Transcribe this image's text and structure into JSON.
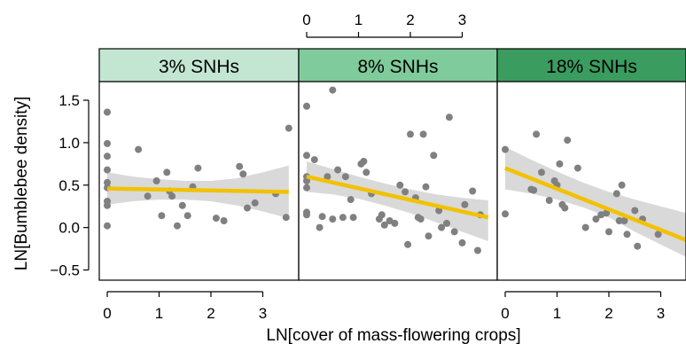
{
  "chart_data": {
    "type": "scatter",
    "xlabel": "LN[cover of mass-flowering crops]",
    "ylabel": "LN[Bumblebee density]",
    "xlim": [
      -0.1,
      3.55
    ],
    "ylim": [
      -0.62,
      1.72
    ],
    "x_ticks": [
      0,
      1,
      2,
      3
    ],
    "y_ticks": [
      -0.5,
      0.0,
      0.5,
      1.0,
      1.5
    ],
    "y_tick_labels": [
      "−0.5",
      "0.0",
      "0.5",
      "1.0",
      "1.5"
    ],
    "point_color": "#808080",
    "line_color": "#f2c100",
    "band_color": "#d9d9d9",
    "panels": [
      {
        "label": "3% SNHs",
        "strip_color": "#c3e6d2",
        "points": [
          [
            0,
            1.36
          ],
          [
            0,
            0.99
          ],
          [
            0,
            0.84
          ],
          [
            0,
            0.68
          ],
          [
            0,
            0.53
          ],
          [
            0,
            0.47
          ],
          [
            0,
            0.31
          ],
          [
            0,
            0.26
          ],
          [
            0,
            0.02
          ],
          [
            0.6,
            0.92
          ],
          [
            0.78,
            0.37
          ],
          [
            0.95,
            0.55
          ],
          [
            1.05,
            0.14
          ],
          [
            1.15,
            0.65
          ],
          [
            1.2,
            0.43
          ],
          [
            1.25,
            0.37
          ],
          [
            1.35,
            0.02
          ],
          [
            1.45,
            0.26
          ],
          [
            1.55,
            0.14
          ],
          [
            1.65,
            0.48
          ],
          [
            1.75,
            0.7
          ],
          [
            2.1,
            0.11
          ],
          [
            2.25,
            0.08
          ],
          [
            2.55,
            0.72
          ],
          [
            2.62,
            0.63
          ],
          [
            2.7,
            0.23
          ],
          [
            2.85,
            0.29
          ],
          [
            3.25,
            0.4
          ],
          [
            3.45,
            0.12
          ],
          [
            3.5,
            1.17
          ]
        ],
        "fit": {
          "x": [
            0,
            3.5
          ],
          "y": [
            0.46,
            0.42
          ]
        },
        "band": {
          "x": [
            0,
            0.5,
            1,
            1.5,
            2,
            2.5,
            3,
            3.5
          ],
          "lower": [
            0.27,
            0.31,
            0.33,
            0.33,
            0.31,
            0.26,
            0.19,
            0.11
          ],
          "upper": [
            0.65,
            0.6,
            0.57,
            0.55,
            0.55,
            0.58,
            0.65,
            0.73
          ]
        }
      },
      {
        "label": "8% SNHs",
        "strip_color": "#7fcb9b",
        "points": [
          [
            0,
            1.43
          ],
          [
            0,
            0.85
          ],
          [
            0,
            0.6
          ],
          [
            0,
            0.55
          ],
          [
            0,
            0.47
          ],
          [
            0,
            0.18
          ],
          [
            0,
            0.15
          ],
          [
            0.15,
            0.8
          ],
          [
            0.3,
            0.13
          ],
          [
            0.4,
            0.6
          ],
          [
            0.5,
            0.1
          ],
          [
            0.6,
            0.68
          ],
          [
            0.7,
            0.12
          ],
          [
            0.75,
            0.6
          ],
          [
            0.85,
            0.33
          ],
          [
            0.9,
            0.12
          ],
          [
            1.05,
            0.75
          ],
          [
            1.1,
            0.78
          ],
          [
            1.25,
            0.4
          ],
          [
            1.4,
            0.1
          ],
          [
            1.45,
            0.15
          ],
          [
            1.5,
            0.03
          ],
          [
            1.6,
            0.08
          ],
          [
            1.7,
            0.05
          ],
          [
            1.8,
            0.5
          ],
          [
            1.9,
            0.42
          ],
          [
            1.95,
            -0.2
          ],
          [
            2.0,
            1.1
          ],
          [
            2.1,
            0.35
          ],
          [
            2.15,
            0.12
          ],
          [
            2.2,
            0.1
          ],
          [
            2.25,
            1.1
          ],
          [
            2.3,
            0.48
          ],
          [
            2.35,
            -0.1
          ],
          [
            2.45,
            0.85
          ],
          [
            2.55,
            0.2
          ],
          [
            2.6,
            0.0
          ],
          [
            2.7,
            0.05
          ],
          [
            2.75,
            1.3
          ],
          [
            2.85,
            -0.05
          ],
          [
            3.0,
            -0.18
          ],
          [
            3.05,
            0.27
          ],
          [
            3.2,
            0.43
          ],
          [
            3.3,
            -0.27
          ],
          [
            3.35,
            0.15
          ],
          [
            0.25,
            0.0
          ],
          [
            0.5,
            1.62
          ],
          [
            1.15,
            0.65
          ]
        ],
        "fit": {
          "x": [
            0,
            3.5
          ],
          "y": [
            0.6,
            0.12
          ]
        },
        "band": {
          "x": [
            0,
            0.5,
            1,
            1.5,
            2,
            2.5,
            3,
            3.5
          ],
          "lower": [
            0.42,
            0.39,
            0.34,
            0.26,
            0.17,
            0.06,
            -0.05,
            -0.16
          ],
          "upper": [
            0.78,
            0.69,
            0.6,
            0.52,
            0.45,
            0.39,
            0.35,
            0.32
          ]
        }
      },
      {
        "label": "18% SNHs",
        "strip_color": "#3b9c60",
        "points": [
          [
            0,
            0.92
          ],
          [
            0,
            0.16
          ],
          [
            0.5,
            0.45
          ],
          [
            0.55,
            0.44
          ],
          [
            0.6,
            1.1
          ],
          [
            0.7,
            0.65
          ],
          [
            0.85,
            0.32
          ],
          [
            0.95,
            0.55
          ],
          [
            1.0,
            0.5
          ],
          [
            1.05,
            0.75
          ],
          [
            1.1,
            0.27
          ],
          [
            1.15,
            0.23
          ],
          [
            1.2,
            1.03
          ],
          [
            1.4,
            0.7
          ],
          [
            1.55,
            0.0
          ],
          [
            1.75,
            0.1
          ],
          [
            1.85,
            0.15
          ],
          [
            1.95,
            0.17
          ],
          [
            2.0,
            -0.05
          ],
          [
            2.15,
            0.4
          ],
          [
            2.2,
            0.08
          ],
          [
            2.25,
            0.5
          ],
          [
            2.3,
            0.08
          ],
          [
            2.35,
            -0.08
          ],
          [
            2.5,
            0.2
          ],
          [
            2.55,
            -0.22
          ],
          [
            2.65,
            0.1
          ],
          [
            2.95,
            -0.08
          ]
        ],
        "fit": {
          "x": [
            0,
            3.5
          ],
          "y": [
            0.7,
            -0.15
          ]
        },
        "band": {
          "x": [
            0,
            0.5,
            1,
            1.5,
            2,
            2.5,
            3,
            3.5
          ],
          "lower": [
            0.45,
            0.4,
            0.33,
            0.24,
            0.12,
            -0.05,
            -0.2,
            -0.35
          ],
          "upper": [
            0.95,
            0.8,
            0.66,
            0.53,
            0.42,
            0.33,
            0.25,
            0.17
          ]
        }
      }
    ]
  }
}
